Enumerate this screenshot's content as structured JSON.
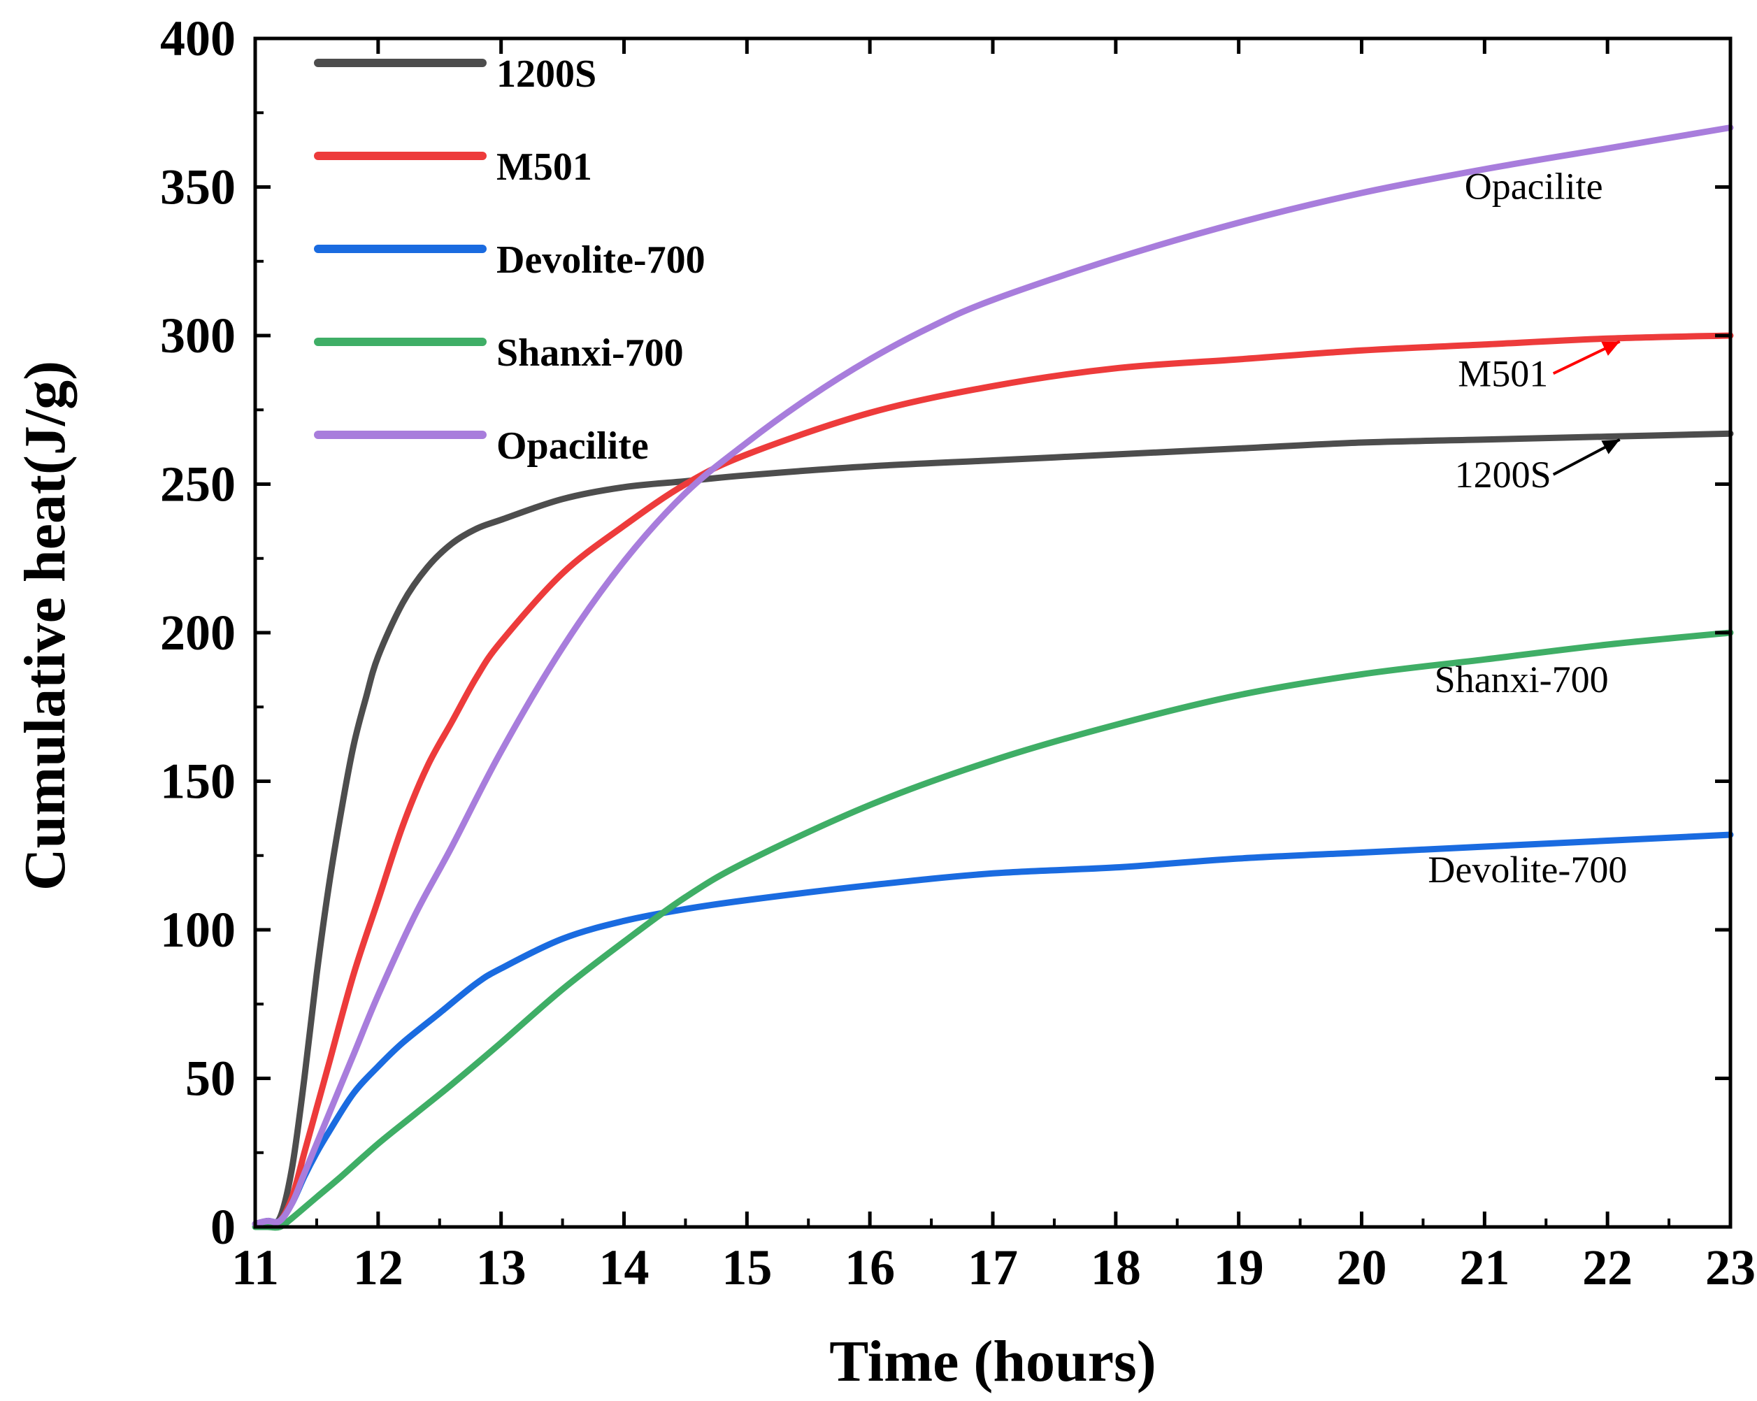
{
  "chart_data": {
    "type": "line",
    "title": "",
    "xlabel": "Time (hours)",
    "ylabel": "Cumulative heat(J/g)",
    "xlim": [
      11,
      23
    ],
    "ylim": [
      0,
      400
    ],
    "xticks": [
      11,
      12,
      13,
      14,
      15,
      16,
      17,
      18,
      19,
      20,
      21,
      22,
      23
    ],
    "yticks": [
      0,
      50,
      100,
      150,
      200,
      250,
      300,
      350,
      400
    ],
    "grid": false,
    "legend_position": "top-left",
    "series": [
      {
        "name": "1200S",
        "color": "#4d4d4d",
        "x": [
          11.0,
          11.1,
          11.2,
          11.3,
          11.4,
          11.5,
          11.6,
          11.7,
          11.8,
          11.9,
          12.0,
          12.2,
          12.4,
          12.6,
          12.8,
          13.0,
          13.5,
          14.0,
          14.5,
          15.0,
          16.0,
          17.0,
          18.0,
          19.0,
          20.0,
          21.0,
          22.0,
          23.0
        ],
        "y": [
          1,
          2,
          3,
          20,
          50,
          85,
          115,
          140,
          162,
          178,
          192,
          210,
          222,
          230,
          235,
          238,
          245,
          249,
          251,
          253,
          256,
          258,
          260,
          262,
          264,
          265,
          266,
          267
        ]
      },
      {
        "name": "M501",
        "color": "#ed3b3b",
        "x": [
          11.0,
          11.1,
          11.2,
          11.3,
          11.4,
          11.5,
          11.6,
          11.8,
          12.0,
          12.2,
          12.4,
          12.6,
          12.8,
          13.0,
          13.5,
          14.0,
          14.5,
          15.0,
          16.0,
          17.0,
          18.0,
          19.0,
          20.0,
          21.0,
          22.0,
          23.0
        ],
        "y": [
          1,
          2,
          2,
          10,
          25,
          40,
          55,
          85,
          110,
          135,
          155,
          170,
          185,
          197,
          220,
          236,
          250,
          260,
          274,
          283,
          289,
          292,
          295,
          297,
          299,
          300
        ]
      },
      {
        "name": "Devolite-700",
        "color": "#1a6be0",
        "x": [
          11.0,
          11.1,
          11.2,
          11.3,
          11.4,
          11.5,
          11.6,
          11.8,
          12.0,
          12.2,
          12.5,
          12.8,
          13.0,
          13.5,
          14.0,
          14.5,
          15.0,
          16.0,
          17.0,
          18.0,
          19.0,
          20.0,
          21.0,
          22.0,
          23.0
        ],
        "y": [
          1,
          2,
          2,
          8,
          17,
          25,
          32,
          45,
          54,
          62,
          72,
          82,
          87,
          97,
          103,
          107,
          110,
          115,
          119,
          121,
          124,
          126,
          128,
          130,
          132
        ]
      },
      {
        "name": "Shanxi-700",
        "color": "#3fae66",
        "x": [
          11.0,
          11.1,
          11.2,
          11.3,
          11.5,
          11.7,
          12.0,
          12.3,
          12.6,
          13.0,
          13.5,
          14.0,
          14.5,
          15.0,
          16.0,
          17.0,
          18.0,
          19.0,
          20.0,
          21.0,
          22.0,
          23.0
        ],
        "y": [
          0,
          0,
          0,
          3,
          10,
          17,
          28,
          38,
          48,
          62,
          80,
          96,
          111,
          123,
          142,
          157,
          169,
          179,
          186,
          191,
          196,
          200
        ]
      },
      {
        "name": "Opacilite",
        "color": "#a87ddc",
        "x": [
          11.0,
          11.1,
          11.2,
          11.3,
          11.4,
          11.6,
          11.8,
          12.0,
          12.3,
          12.6,
          13.0,
          13.5,
          14.0,
          14.5,
          15.0,
          15.5,
          16.0,
          16.5,
          17.0,
          18.0,
          19.0,
          20.0,
          21.0,
          22.0,
          23.0
        ],
        "y": [
          1,
          2,
          2,
          8,
          18,
          38,
          58,
          78,
          105,
          128,
          160,
          195,
          224,
          247,
          264,
          279,
          292,
          303,
          312,
          326,
          338,
          348,
          356,
          363,
          370
        ]
      }
    ],
    "annotations": [
      {
        "text": "Opacilite",
        "x": 21.4,
        "y": 346
      },
      {
        "text": "M501",
        "x": 21.15,
        "y": 283,
        "arrow_to": [
          22.1,
          298
        ]
      },
      {
        "text": "1200S",
        "x": 21.15,
        "y": 249,
        "arrow_to": [
          22.1,
          265
        ]
      },
      {
        "text": "Shanxi-700",
        "x": 21.3,
        "y": 180
      },
      {
        "text": "Devolite-700",
        "x": 21.35,
        "y": 116
      }
    ]
  }
}
